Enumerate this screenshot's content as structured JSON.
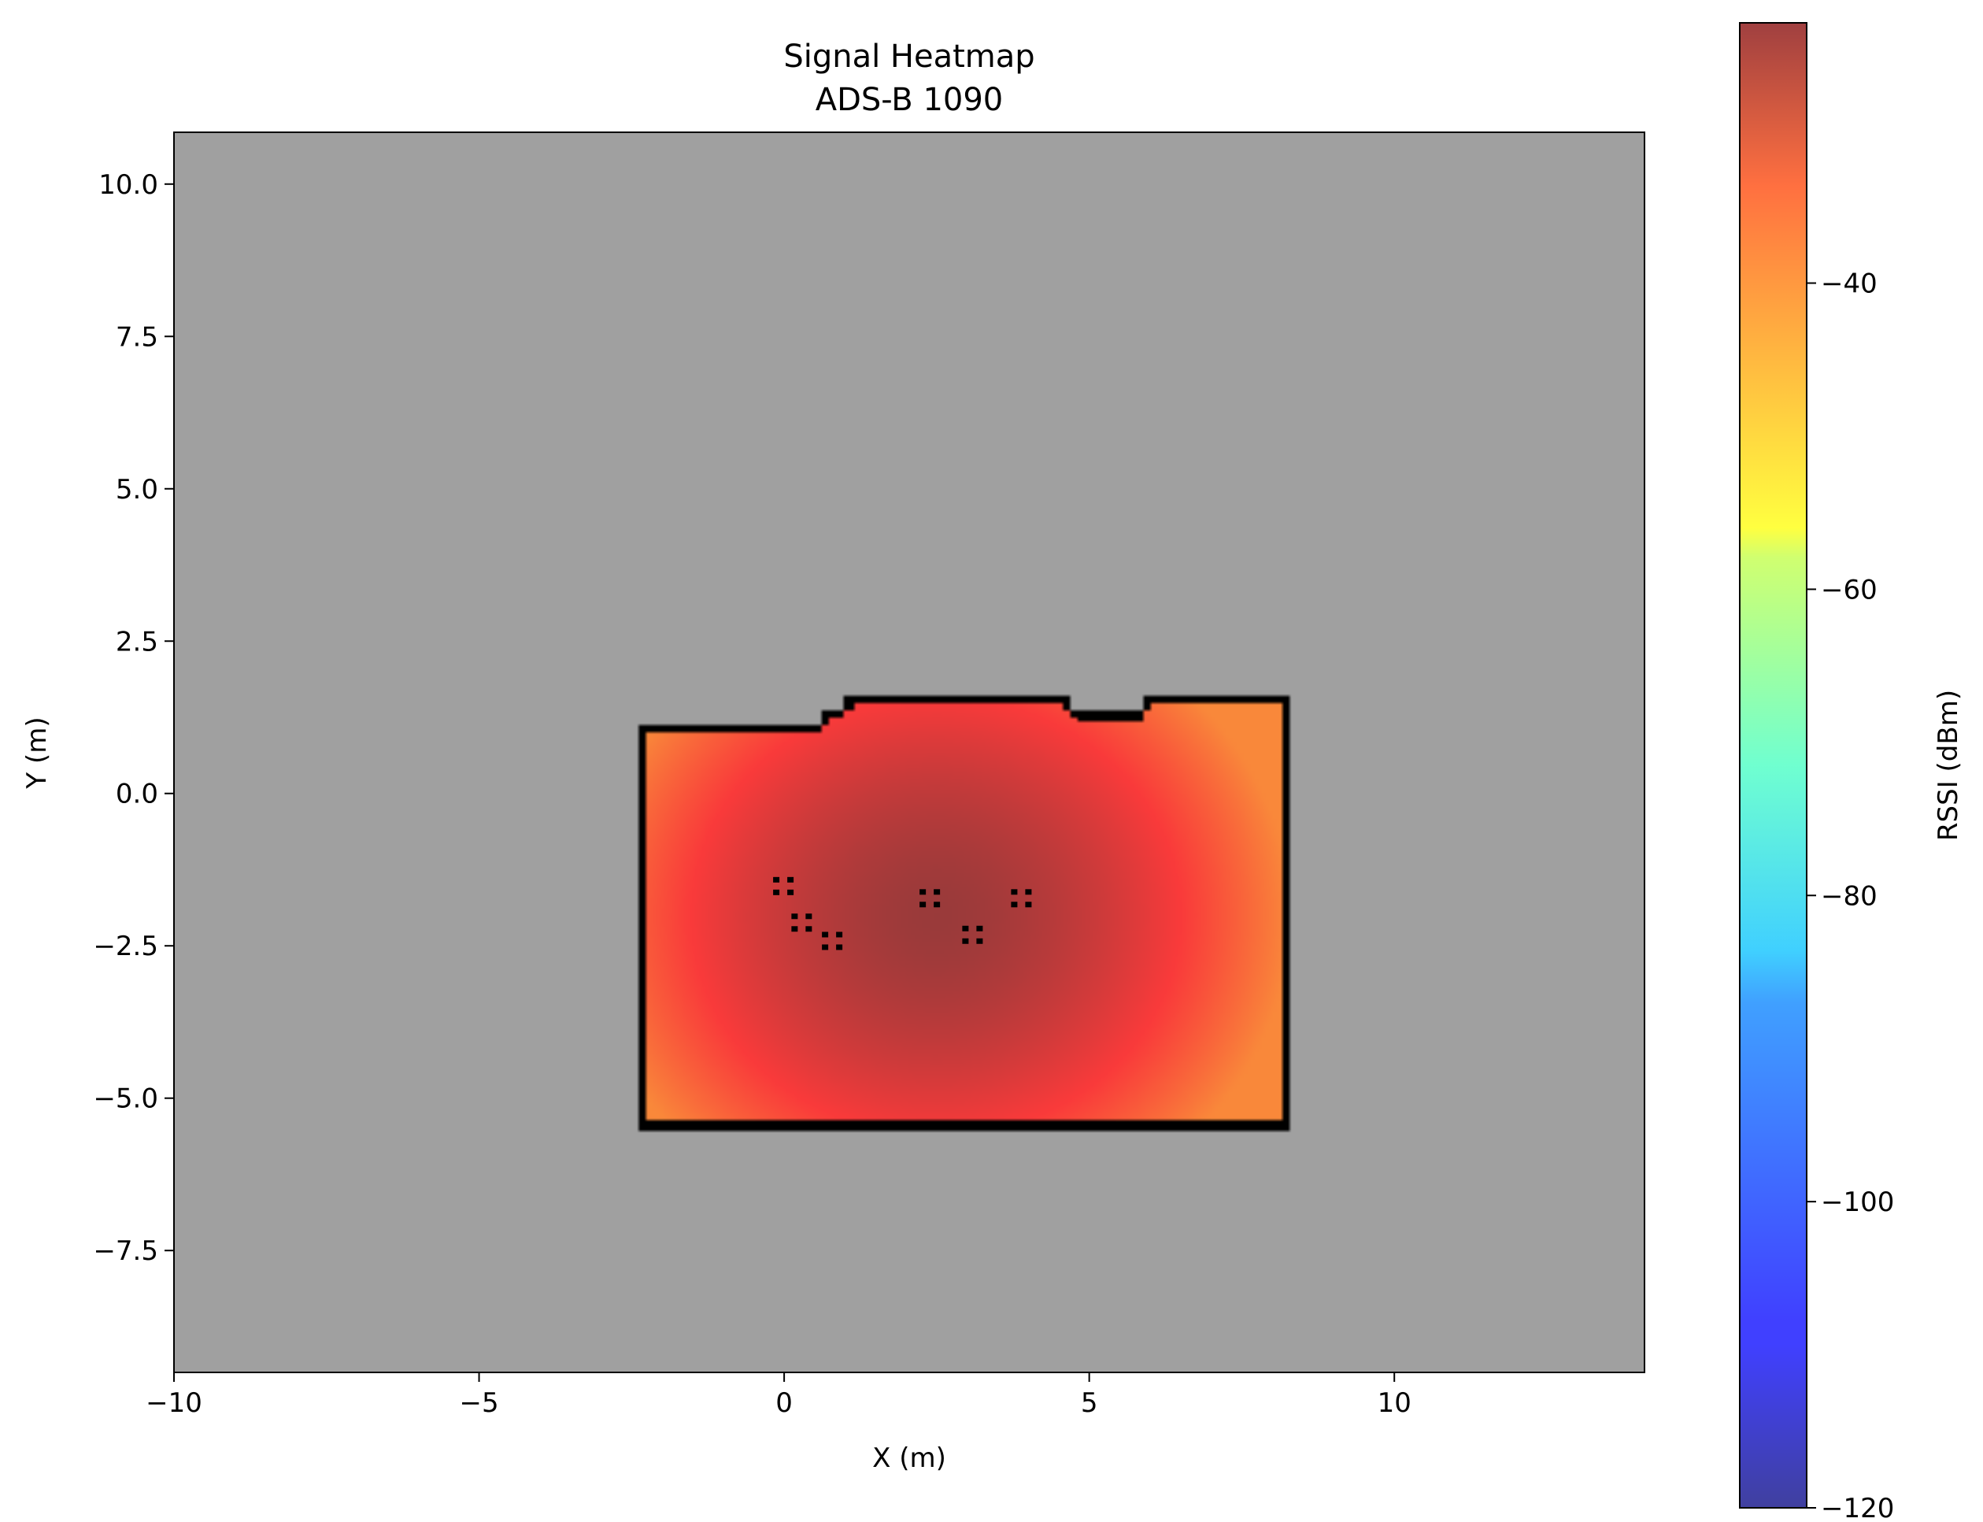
{
  "chart_data": {
    "type": "heatmap",
    "title": "Signal Heatmap",
    "subtitle": "ADS-B 1090",
    "xlabel": "X (m)",
    "ylabel": "Y (m)",
    "xlim": [
      -10,
      14.1
    ],
    "ylim": [
      -9.5,
      10.85
    ],
    "xticks": [
      -10,
      -5,
      0,
      5,
      10
    ],
    "xtick_labels": [
      "−10",
      "−5",
      "0",
      "5",
      "10"
    ],
    "yticks": [
      10,
      7.5,
      5,
      2.5,
      0,
      -2.5,
      -5,
      -7.5
    ],
    "ytick_labels": [
      "10.0",
      "7.5",
      "5.0",
      "2.5",
      "0.0",
      "−2.5",
      "−5.0",
      "−7.5"
    ],
    "background_color": "#a0a0a0",
    "wall_color": "#000000",
    "grid": false,
    "colormap": "jet",
    "colorbar": {
      "label": "RSSI (dBm)",
      "range": [
        -120,
        -23
      ],
      "ticks": [
        -40,
        -60,
        -80,
        -100,
        -120
      ],
      "tick_labels": [
        "−40",
        "−60",
        "−80",
        "−100",
        "−120"
      ]
    },
    "signal_model": {
      "peak_rssi_dbm": -23,
      "peak_location": [
        2.5,
        -2.0
      ],
      "region_x_range": [
        -2.4,
        8.3
      ],
      "region_y_range": [
        -5.5,
        1.6
      ],
      "edge_rssi_dbm": -45
    },
    "obstacles": [
      {
        "x": 0.0,
        "y": -1.5
      },
      {
        "x": 0.3,
        "y": -2.1
      },
      {
        "x": 0.8,
        "y": -2.4
      },
      {
        "x": 2.4,
        "y": -1.7
      },
      {
        "x": 3.1,
        "y": -2.3
      },
      {
        "x": 3.9,
        "y": -1.7
      }
    ]
  }
}
